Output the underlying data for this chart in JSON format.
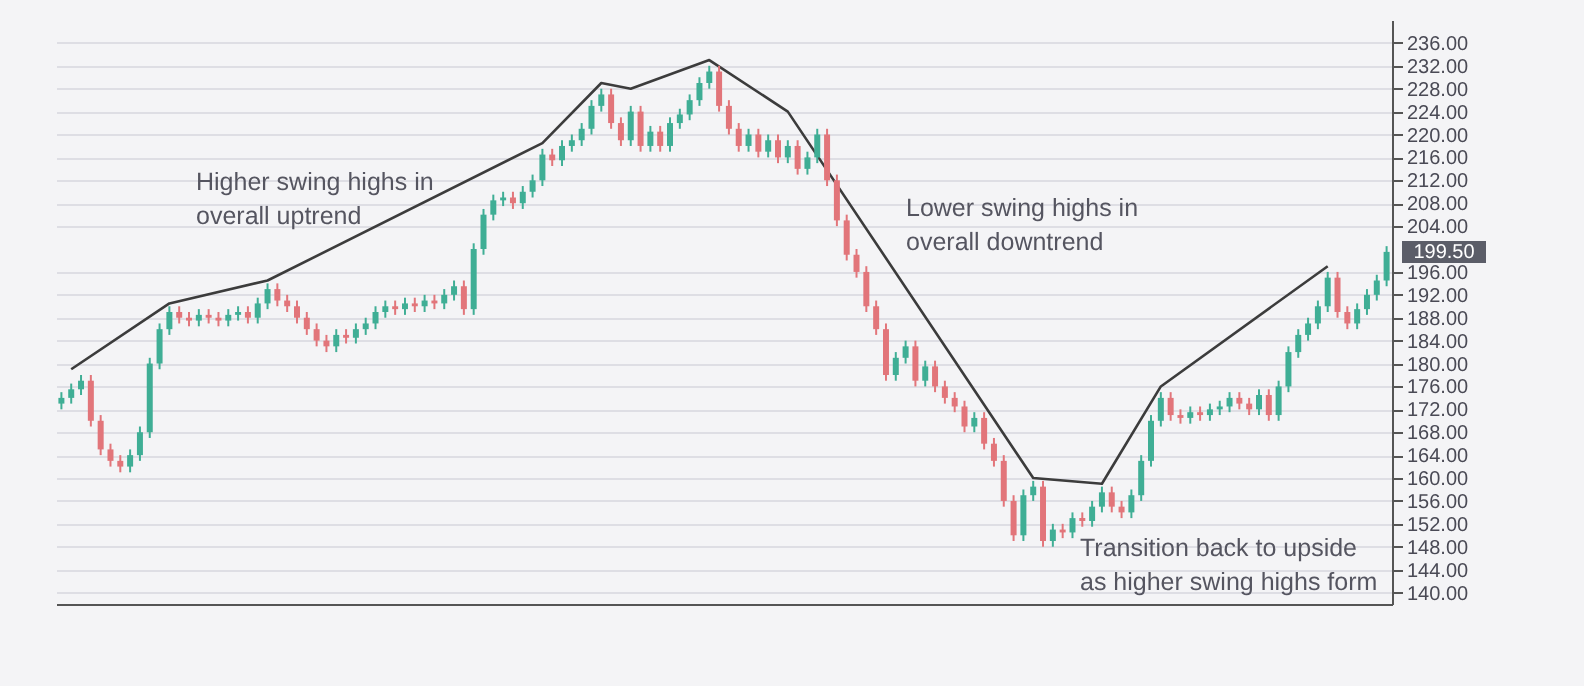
{
  "chart_data": {
    "type": "candlestick",
    "categories": [
      null,
      null,
      null,
      null,
      null,
      null,
      null,
      null,
      null,
      null,
      null,
      null,
      null,
      null,
      null,
      null,
      null,
      null,
      null,
      null,
      null,
      null,
      null,
      null,
      null,
      null,
      null,
      null,
      null,
      null,
      null,
      null,
      null,
      null,
      null,
      null,
      null,
      null,
      null,
      null,
      null,
      null,
      null,
      null,
      null,
      null,
      null,
      null,
      null,
      null,
      null,
      null,
      null,
      null,
      null,
      null,
      null,
      null,
      null,
      null,
      null,
      null,
      null,
      null,
      null,
      null,
      null,
      null,
      null,
      null,
      null,
      null,
      null,
      null,
      null,
      null,
      null,
      null,
      null,
      null,
      null,
      null,
      null,
      null,
      null,
      null,
      null,
      null,
      null,
      null,
      null,
      null,
      null,
      null,
      null,
      null,
      null,
      null,
      null,
      null,
      null,
      null,
      null,
      null,
      null,
      null,
      null,
      null,
      null,
      null,
      null,
      null,
      null,
      null,
      null,
      null,
      null,
      null,
      null,
      null,
      null,
      null,
      null,
      null,
      null,
      null,
      null,
      null,
      null,
      null,
      null,
      null,
      null,
      null,
      null,
      null
    ],
    "ohlc": [
      [
        173,
        175,
        172,
        174
      ],
      [
        174,
        176.5,
        173,
        175.5
      ],
      [
        175.5,
        178,
        174.5,
        177
      ],
      [
        177,
        178,
        169,
        170
      ],
      [
        170,
        171,
        164,
        165
      ],
      [
        165,
        166,
        162,
        163
      ],
      [
        163,
        164,
        161,
        162
      ],
      [
        162,
        165,
        161,
        164
      ],
      [
        164,
        169,
        163,
        168
      ],
      [
        168,
        181,
        167,
        180
      ],
      [
        180,
        187,
        179,
        186
      ],
      [
        186,
        190,
        185,
        189
      ],
      [
        189,
        190,
        187,
        188
      ],
      [
        188,
        189,
        186.5,
        187.5
      ],
      [
        187.5,
        189.5,
        186.5,
        188.5
      ],
      [
        188.5,
        189.5,
        187,
        188
      ],
      [
        188,
        189,
        186.5,
        187.5
      ],
      [
        187.5,
        189.5,
        186.5,
        188.5
      ],
      [
        188.5,
        190,
        187.5,
        189
      ],
      [
        189,
        190,
        187,
        188
      ],
      [
        188,
        191.5,
        187,
        190.5
      ],
      [
        190.5,
        194,
        189.5,
        193
      ],
      [
        193,
        194,
        190,
        191
      ],
      [
        191,
        192,
        189,
        190
      ],
      [
        190,
        191,
        187,
        188
      ],
      [
        188,
        189,
        185,
        186
      ],
      [
        186,
        187,
        183,
        184
      ],
      [
        184,
        185,
        182,
        183
      ],
      [
        183,
        186,
        182,
        185
      ],
      [
        185,
        186,
        183.5,
        184.5
      ],
      [
        184.5,
        187,
        183.5,
        186
      ],
      [
        186,
        188,
        185,
        187
      ],
      [
        187,
        190,
        186,
        189
      ],
      [
        189,
        191,
        188,
        190
      ],
      [
        190,
        191,
        188.5,
        189.5
      ],
      [
        189.5,
        191.5,
        188.5,
        190.5
      ],
      [
        190.5,
        191.5,
        189,
        190
      ],
      [
        190,
        192,
        189,
        191
      ],
      [
        191,
        192,
        189.5,
        190.5
      ],
      [
        190.5,
        193,
        189.5,
        192
      ],
      [
        192,
        194.5,
        191,
        193.5
      ],
      [
        193.5,
        194.5,
        188.5,
        189.5
      ],
      [
        189.5,
        201,
        188.5,
        200
      ],
      [
        200,
        207,
        199,
        206
      ],
      [
        206,
        209.5,
        205,
        208.5
      ],
      [
        208.5,
        210,
        207.5,
        209
      ],
      [
        209,
        210,
        207,
        208
      ],
      [
        208,
        211,
        207,
        210
      ],
      [
        210,
        213,
        209,
        212
      ],
      [
        212,
        217.5,
        211,
        216.5
      ],
      [
        216.5,
        217.5,
        214.5,
        215.5
      ],
      [
        215.5,
        219,
        214.5,
        218
      ],
      [
        218,
        220,
        217,
        219
      ],
      [
        219,
        222,
        218,
        221
      ],
      [
        221,
        226,
        220,
        225
      ],
      [
        225,
        228,
        224,
        227
      ],
      [
        227,
        228,
        221,
        222
      ],
      [
        222,
        223,
        218,
        219
      ],
      [
        219,
        225,
        218,
        224
      ],
      [
        224,
        225,
        217,
        218
      ],
      [
        218,
        221.5,
        217,
        220.5
      ],
      [
        220.5,
        221.5,
        217,
        218
      ],
      [
        218,
        223,
        217,
        222
      ],
      [
        222,
        224.5,
        221,
        223.5
      ],
      [
        223.5,
        227,
        222.5,
        226
      ],
      [
        226,
        230,
        225,
        229
      ],
      [
        229,
        232,
        228,
        231
      ],
      [
        231,
        232,
        224,
        225
      ],
      [
        225,
        226,
        220,
        221
      ],
      [
        221,
        222,
        217,
        218
      ],
      [
        218,
        221,
        217,
        220
      ],
      [
        220,
        221,
        216,
        217
      ],
      [
        217,
        220,
        216,
        219
      ],
      [
        219,
        220,
        215,
        216
      ],
      [
        216,
        219,
        215,
        218
      ],
      [
        218,
        219,
        213,
        214
      ],
      [
        214,
        217,
        213,
        216
      ],
      [
        216,
        221,
        215,
        220
      ],
      [
        220,
        221,
        211,
        212
      ],
      [
        212,
        213,
        204,
        205
      ],
      [
        205,
        206,
        198,
        199
      ],
      [
        199,
        200,
        195,
        196
      ],
      [
        196,
        197,
        189,
        190
      ],
      [
        190,
        191,
        185,
        186
      ],
      [
        186,
        187,
        177,
        178
      ],
      [
        178,
        182,
        177,
        181
      ],
      [
        181,
        184,
        180,
        183
      ],
      [
        183,
        184,
        176,
        177
      ],
      [
        177,
        180.5,
        176,
        179.5
      ],
      [
        179.5,
        180.5,
        175,
        176
      ],
      [
        176,
        177,
        173,
        174
      ],
      [
        174,
        175,
        171.5,
        172.5
      ],
      [
        172.5,
        173.5,
        168,
        169
      ],
      [
        169,
        171.5,
        168,
        170.5
      ],
      [
        170.5,
        171.5,
        165,
        166
      ],
      [
        166,
        167,
        162,
        163
      ],
      [
        163,
        164,
        155,
        156
      ],
      [
        156,
        157,
        149,
        150
      ],
      [
        150,
        158,
        149,
        157
      ],
      [
        157,
        159.5,
        156,
        158.5
      ],
      [
        158.5,
        159.5,
        148,
        149
      ],
      [
        149,
        152,
        148,
        151
      ],
      [
        151,
        152,
        149.5,
        150.5
      ],
      [
        150.5,
        154,
        149.5,
        153
      ],
      [
        153,
        154,
        151.5,
        152.5
      ],
      [
        152.5,
        156,
        151.5,
        155
      ],
      [
        155,
        158.5,
        154,
        157.5
      ],
      [
        157.5,
        158.5,
        154,
        155
      ],
      [
        155,
        156,
        153,
        154
      ],
      [
        154,
        158,
        153,
        157
      ],
      [
        157,
        164,
        156,
        163
      ],
      [
        163,
        171,
        162,
        170
      ],
      [
        170,
        175,
        169,
        174
      ],
      [
        174,
        175,
        170,
        171
      ],
      [
        171,
        172,
        169.5,
        170.5
      ],
      [
        170.5,
        172.5,
        169.5,
        171.5
      ],
      [
        171.5,
        172.5,
        170,
        171
      ],
      [
        171,
        173,
        170,
        172
      ],
      [
        172,
        173.5,
        171,
        172.5
      ],
      [
        172.5,
        175,
        171.5,
        174
      ],
      [
        174,
        175,
        172,
        173
      ],
      [
        173,
        174,
        171,
        172
      ],
      [
        172,
        175.5,
        171,
        174.5
      ],
      [
        174.5,
        175.5,
        170,
        171
      ],
      [
        171,
        177,
        170,
        176
      ],
      [
        176,
        183,
        175,
        182
      ],
      [
        182,
        186,
        181,
        185
      ],
      [
        185,
        188,
        184,
        187
      ],
      [
        187,
        191,
        186,
        190
      ],
      [
        190,
        196,
        189,
        195
      ],
      [
        195,
        196,
        188,
        189
      ],
      [
        189,
        190,
        186,
        187
      ],
      [
        187,
        190.5,
        186,
        189.5
      ],
      [
        189.5,
        193,
        188.5,
        192
      ],
      [
        192,
        195.5,
        191,
        194.5
      ],
      [
        194.5,
        200.5,
        193.5,
        199.5
      ]
    ],
    "series": [
      {
        "type": "line",
        "color": "#3c3c3c",
        "values": [
          null,
          179,
          null,
          null,
          null,
          null,
          null,
          null,
          null,
          null,
          null,
          190.5,
          null,
          null,
          null,
          null,
          null,
          null,
          null,
          null,
          null,
          194.5,
          null,
          null,
          null,
          null,
          null,
          null,
          null,
          null,
          null,
          null,
          null,
          null,
          null,
          null,
          null,
          null,
          null,
          null,
          null,
          null,
          null,
          null,
          null,
          null,
          null,
          null,
          null,
          218.5,
          null,
          null,
          null,
          null,
          null,
          229,
          null,
          null,
          228,
          null,
          null,
          null,
          null,
          null,
          null,
          null,
          233,
          null,
          null,
          null,
          null,
          null,
          null,
          null,
          224,
          null,
          null,
          null,
          null,
          null,
          null,
          null,
          null,
          null,
          null,
          null,
          null,
          null,
          null,
          null,
          null,
          null,
          null,
          null,
          null,
          null,
          null,
          null,
          null,
          160,
          null,
          null,
          null,
          null,
          null,
          null,
          159,
          null,
          null,
          null,
          null,
          null,
          176,
          null,
          null,
          null,
          null,
          null,
          null,
          null,
          null,
          null,
          null,
          null,
          null,
          null,
          null,
          null,
          null,
          197,
          null,
          null,
          null,
          null,
          null,
          null
        ]
      }
    ],
    "annotations": [
      "Higher swing highs in\noverall uptrend",
      "Lower swing highs in\noverall downtrend",
      "Transition back to upside\nas higher swing highs form",
      "199.50"
    ],
    "ylim": [
      138,
      240
    ],
    "yticks": [
      {
        "value": 140,
        "label": "140.00"
      },
      {
        "value": 144,
        "label": "144.00"
      },
      {
        "value": 148,
        "label": "148.00"
      },
      {
        "value": 152,
        "label": "152.00"
      },
      {
        "value": 156,
        "label": "156.00"
      },
      {
        "value": 160,
        "label": "160.00"
      },
      {
        "value": 164,
        "label": "164.00"
      },
      {
        "value": 168,
        "label": "168.00"
      },
      {
        "value": 172,
        "label": "172.00"
      },
      {
        "value": 176,
        "label": "176.00"
      },
      {
        "value": 180,
        "label": "180.00"
      },
      {
        "value": 184,
        "label": "184.00"
      },
      {
        "value": 188,
        "label": "188.00"
      },
      {
        "value": 192,
        "label": "192.00"
      },
      {
        "value": 196,
        "label": "196.00"
      },
      {
        "value": 204,
        "label": "204.00"
      },
      {
        "value": 208,
        "label": "208.00"
      },
      {
        "value": 212,
        "label": "212.00"
      },
      {
        "value": 216,
        "label": "216.00"
      },
      {
        "value": 220,
        "label": "220.00"
      },
      {
        "value": 224,
        "label": "224.00"
      },
      {
        "value": 228,
        "label": "228.00"
      },
      {
        "value": 232,
        "label": "232.00"
      },
      {
        "value": 236,
        "label": "236.00"
      }
    ],
    "grid": "y",
    "tick_labels": "y"
  }
}
